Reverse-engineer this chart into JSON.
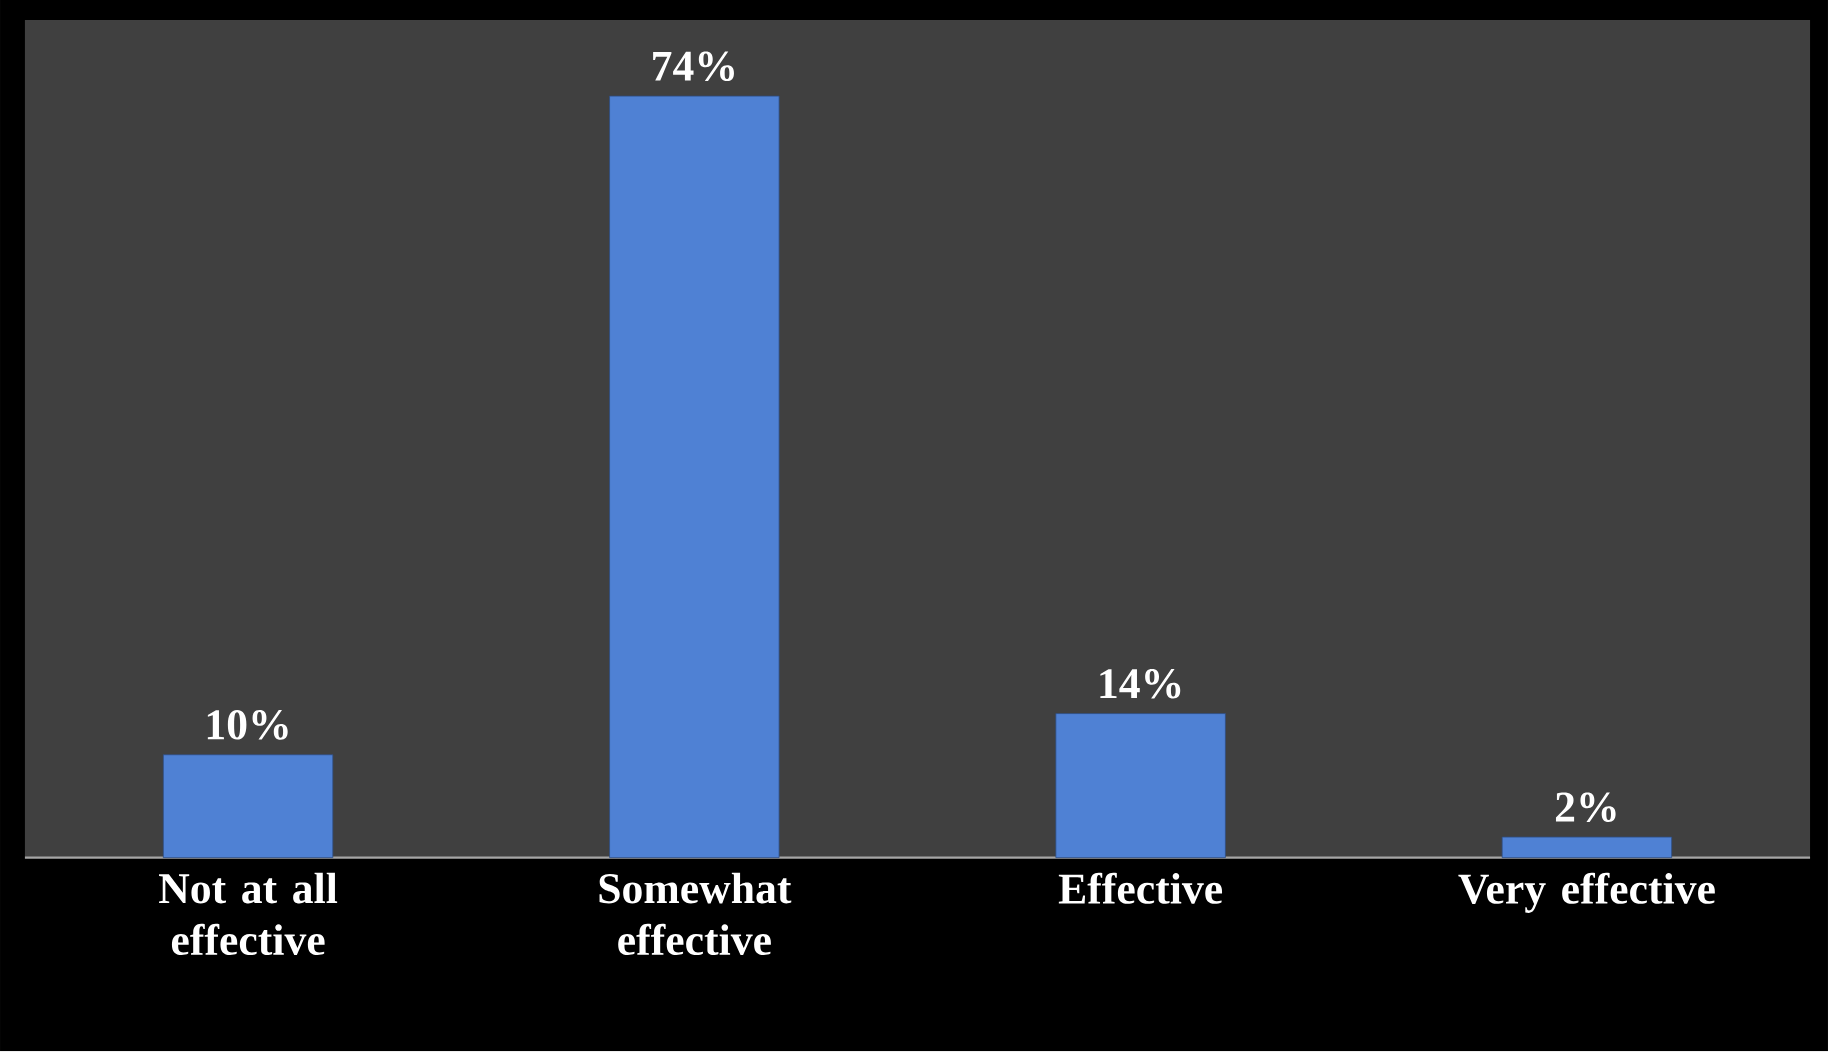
{
  "chart_data": {
    "type": "bar",
    "categories": [
      "Not at all effective",
      "Somewhat effective",
      "Effective",
      "Very effective"
    ],
    "values": [
      10,
      74,
      14,
      2
    ],
    "value_labels": [
      "10%",
      "74%",
      "14%",
      "2%"
    ],
    "color": "#4f81d4"
  }
}
